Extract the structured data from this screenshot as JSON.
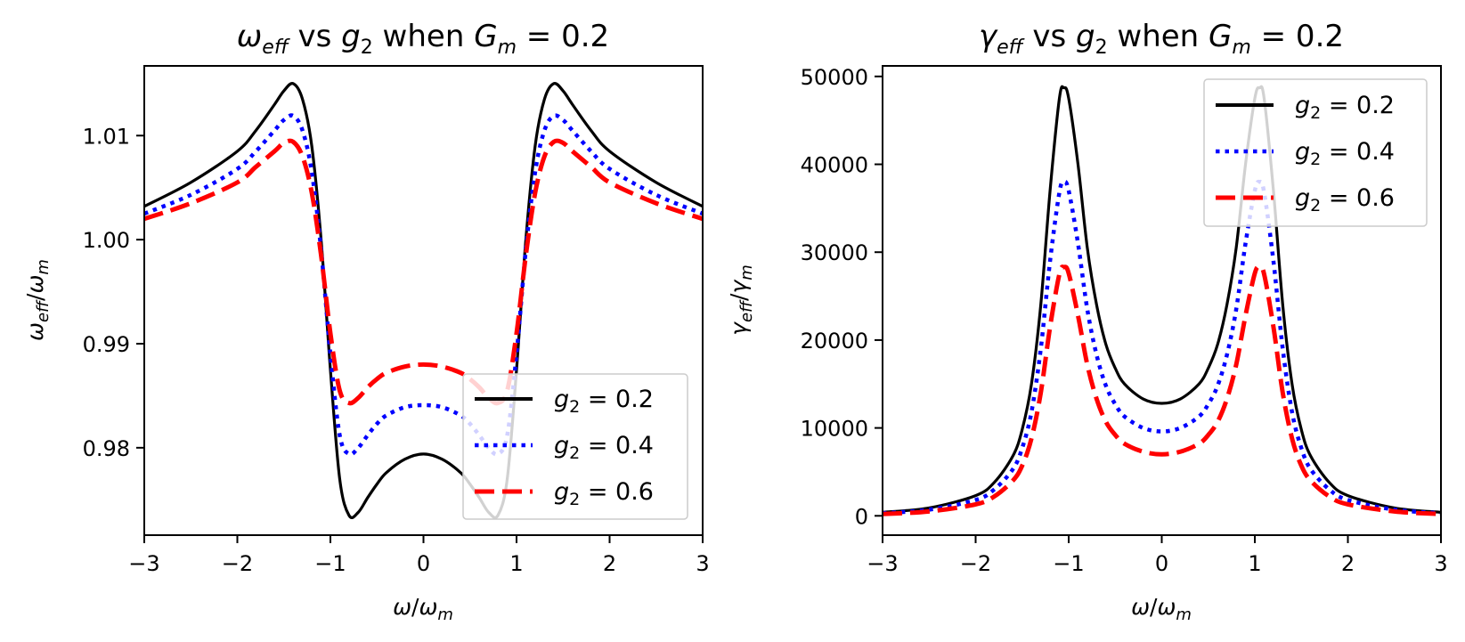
{
  "chart_data": [
    {
      "type": "line",
      "title": {
        "base": "ω",
        "sub": "eff",
        "mid": " vs ",
        "var": "g",
        "varsub": "2",
        "tail": " when ",
        "gvar": "G",
        "gsub": "m",
        "value": " = 0.2"
      },
      "xlabel": {
        "base": "ω",
        "sep": "/",
        "den": "ω",
        "densub": "m"
      },
      "ylabel": {
        "base": "ω",
        "sub": "eff",
        "sep": "/",
        "den": "ω",
        "densub": "m"
      },
      "xlim": [
        -3,
        3
      ],
      "ylim": [
        0.9716,
        1.0167
      ],
      "xticks": [
        -3,
        -2,
        -1,
        0,
        1,
        2,
        3
      ],
      "xtick_labels": [
        "−3",
        "−2",
        "−1",
        "0",
        "1",
        "2",
        "3"
      ],
      "yticks": [
        0.98,
        0.99,
        1.0,
        1.01
      ],
      "ytick_labels": [
        "0.98",
        "0.99",
        "1.00",
        "1.01"
      ],
      "legend_position": "lower-right",
      "x": [
        -3,
        -2.5,
        -2,
        -1.8,
        -1.6,
        -1.5,
        -1.4,
        -1.3,
        -1.2,
        -1.1,
        -1.0,
        -0.9,
        -0.8,
        -0.7,
        -0.6,
        -0.5,
        -0.4,
        -0.2,
        0,
        0.2,
        0.4,
        0.5,
        0.6,
        0.7,
        0.8,
        0.9,
        1.0,
        1.1,
        1.2,
        1.3,
        1.4,
        1.5,
        1.6,
        1.8,
        2,
        2.5,
        3
      ],
      "series": [
        {
          "name": "g2 = 0.2",
          "label_base": "g",
          "label_sub": "2",
          "label_value": " = 0.2",
          "color": "#000000",
          "style": "solid",
          "values": [
            1.0032,
            1.0055,
            1.0085,
            1.0105,
            1.013,
            1.0143,
            1.015,
            1.0135,
            1.009,
            1.0,
            0.9875,
            0.977,
            0.9735,
            0.9738,
            0.9752,
            0.9765,
            0.9776,
            0.9789,
            0.9794,
            0.9789,
            0.9776,
            0.9765,
            0.9752,
            0.9738,
            0.9735,
            0.977,
            0.9875,
            1.0,
            1.009,
            1.0135,
            1.015,
            1.0143,
            1.013,
            1.0105,
            1.0085,
            1.0055,
            1.0032
          ]
        },
        {
          "name": "g2 = 0.4",
          "label_base": "g",
          "label_sub": "2",
          "label_value": " = 0.4",
          "color": "#0000ff",
          "style": "dotted",
          "values": [
            1.0025,
            1.0043,
            1.0068,
            1.0085,
            1.0105,
            1.0115,
            1.0119,
            1.0105,
            1.0065,
            0.999,
            0.989,
            0.9812,
            0.9794,
            0.98,
            0.9812,
            0.9823,
            0.9831,
            0.9839,
            0.9841,
            0.9839,
            0.9831,
            0.9823,
            0.9812,
            0.98,
            0.9794,
            0.9812,
            0.989,
            0.999,
            1.0065,
            1.0105,
            1.0119,
            1.0115,
            1.0105,
            1.0085,
            1.0068,
            1.0043,
            1.0025
          ]
        },
        {
          "name": "g2 = 0.6",
          "label_base": "g",
          "label_sub": "2",
          "label_value": " = 0.6",
          "color": "#ff0000",
          "style": "dashed",
          "values": [
            1.002,
            1.0035,
            1.0055,
            1.007,
            1.0085,
            1.0093,
            1.0094,
            1.008,
            1.0045,
            0.9985,
            0.991,
            0.9855,
            0.9843,
            0.9848,
            0.9858,
            0.9866,
            0.9872,
            0.9878,
            0.988,
            0.9878,
            0.9872,
            0.9866,
            0.9858,
            0.9848,
            0.9843,
            0.9855,
            0.991,
            0.9985,
            1.0045,
            1.008,
            1.0094,
            1.0093,
            1.0085,
            1.007,
            1.0055,
            1.0035,
            1.002
          ]
        }
      ]
    },
    {
      "type": "line",
      "title": {
        "base": "γ",
        "sub": "eff",
        "mid": " vs ",
        "var": "g",
        "varsub": "2",
        "tail": " when ",
        "gvar": "G",
        "gsub": "m",
        "value": " = 0.2"
      },
      "xlabel": {
        "base": "ω",
        "sep": "/",
        "den": "ω",
        "densub": "m"
      },
      "ylabel": {
        "base": "γ",
        "sub": "eff",
        "sep": "/",
        "den": "γ",
        "densub": "m"
      },
      "xlim": [
        -3,
        3
      ],
      "ylim": [
        -2200,
        51200
      ],
      "xticks": [
        -3,
        -2,
        -1,
        0,
        1,
        2,
        3
      ],
      "xtick_labels": [
        "−3",
        "−2",
        "−1",
        "0",
        "1",
        "2",
        "3"
      ],
      "yticks": [
        0,
        10000,
        20000,
        30000,
        40000,
        50000
      ],
      "ytick_labels": [
        "0",
        "10000",
        "20000",
        "30000",
        "40000",
        "50000"
      ],
      "legend_position": "upper-right",
      "x": [
        -3,
        -2.5,
        -2,
        -1.8,
        -1.6,
        -1.5,
        -1.4,
        -1.3,
        -1.2,
        -1.1,
        -1.05,
        -1.0,
        -0.9,
        -0.8,
        -0.7,
        -0.6,
        -0.5,
        -0.4,
        -0.2,
        0,
        0.2,
        0.4,
        0.5,
        0.6,
        0.7,
        0.8,
        0.9,
        1.0,
        1.05,
        1.1,
        1.2,
        1.3,
        1.4,
        1.5,
        1.6,
        1.8,
        2,
        2.5,
        3
      ],
      "series": [
        {
          "name": "g2 = 0.2",
          "label_base": "g",
          "label_sub": "2",
          "label_value": " = 0.2",
          "color": "#000000",
          "style": "solid",
          "values": [
            400,
            900,
            2300,
            3800,
            6800,
            9800,
            15000,
            24000,
            37000,
            47500,
            48700,
            47500,
            40000,
            30500,
            24000,
            19500,
            16800,
            15000,
            13300,
            12800,
            13300,
            15000,
            16800,
            19500,
            24000,
            30500,
            40000,
            47500,
            48700,
            47500,
            37000,
            24000,
            15000,
            9800,
            6800,
            3800,
            2300,
            900,
            400
          ]
        },
        {
          "name": "g2 = 0.4",
          "label_base": "g",
          "label_sub": "2",
          "label_value": " = 0.4",
          "color": "#0000ff",
          "style": "dotted",
          "values": [
            300,
            700,
            1800,
            3000,
            5300,
            7700,
            11800,
            19000,
            29000,
            36800,
            38000,
            37000,
            31000,
            23500,
            18300,
            14800,
            12700,
            11300,
            10000,
            9600,
            10000,
            11300,
            12700,
            14800,
            18300,
            23500,
            31000,
            37000,
            38000,
            36800,
            29000,
            19000,
            11800,
            7700,
            5300,
            3000,
            1800,
            700,
            300
          ]
        },
        {
          "name": "g2 = 0.6",
          "label_base": "g",
          "label_sub": "2",
          "label_value": " = 0.6",
          "color": "#ff0000",
          "style": "dashed",
          "values": [
            200,
            500,
            1300,
            2200,
            4000,
            5700,
            8800,
            14000,
            21500,
            27500,
            28300,
            27600,
            22800,
            17200,
            13300,
            10700,
            9200,
            8200,
            7300,
            7000,
            7300,
            8200,
            9200,
            10700,
            13300,
            17200,
            22800,
            27600,
            28300,
            27500,
            21500,
            14000,
            8800,
            5700,
            4000,
            2200,
            1300,
            500,
            200
          ]
        }
      ]
    }
  ]
}
